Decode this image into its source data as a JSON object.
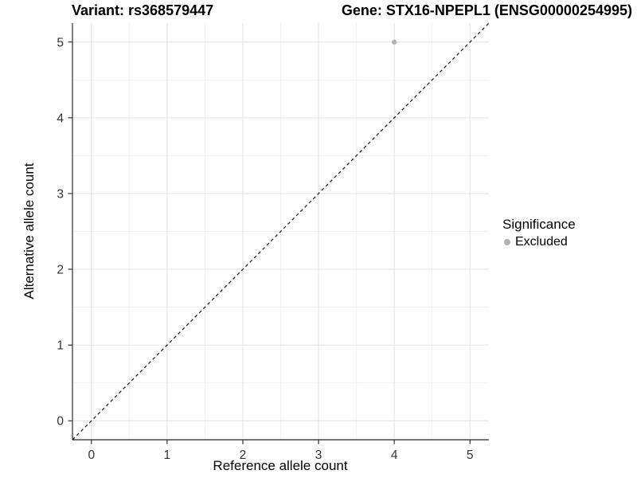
{
  "chart_data": {
    "type": "scatter",
    "title_left": "Variant: rs368579447",
    "title_right": "Gene: STX16-NPEPL1 (ENSG00000254995)",
    "xlabel": "Reference allele count",
    "ylabel": "Alternative allele count",
    "xlim": [
      -0.25,
      5.25
    ],
    "ylim": [
      -0.25,
      5.25
    ],
    "xticks": [
      0,
      1,
      2,
      3,
      4,
      5
    ],
    "yticks": [
      0,
      1,
      2,
      3,
      4,
      5
    ],
    "minor_xticks": [
      0.5,
      1.5,
      2.5,
      3.5,
      4.5
    ],
    "minor_yticks": [
      0.5,
      1.5,
      2.5,
      3.5,
      4.5
    ],
    "grid": true,
    "points": [
      {
        "x": 4,
        "y": 5,
        "series": "Excluded"
      }
    ],
    "identity_line": {
      "slope": 1,
      "intercept": 0,
      "style": "dashed",
      "color": "#1a1a1a"
    },
    "legend": {
      "title": "Significance",
      "position": "right",
      "entries": [
        {
          "label": "Excluded",
          "color": "#b3b3b3"
        }
      ]
    },
    "colors": {
      "point": "#b3b3b3",
      "grid_major": "#e3e3e3",
      "grid_minor": "#f1f1f1",
      "axis_line": "#4a4a4a",
      "tick_mark": "#333333",
      "tick_label": "#333333",
      "background": "#ffffff"
    }
  }
}
